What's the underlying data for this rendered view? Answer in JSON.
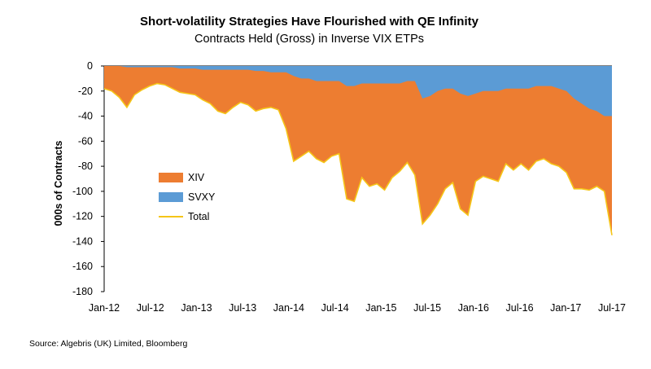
{
  "chart_data": {
    "type": "area",
    "title": "Short-volatility Strategies Have Flourished with QE Infinity",
    "subtitle": "Contracts Held (Gross) in Inverse VIX ETPs",
    "xlabel": "",
    "ylabel": "000s of Contracts",
    "ylim": [
      -180,
      0
    ],
    "yticks": [
      0,
      -20,
      -40,
      -60,
      -80,
      -100,
      -120,
      -140,
      -160,
      -180
    ],
    "x_tick_labels": [
      "Jan-12",
      "Jul-12",
      "Jan-13",
      "Jul-13",
      "Jan-14",
      "Jul-14",
      "Jan-15",
      "Jul-15",
      "Jan-16",
      "Jul-16",
      "Jan-17",
      "Jul-17"
    ],
    "grid": false,
    "legend_position": "left-middle",
    "x": [
      "2012-01",
      "2012-02",
      "2012-03",
      "2012-04",
      "2012-05",
      "2012-06",
      "2012-07",
      "2012-08",
      "2012-09",
      "2012-10",
      "2012-11",
      "2012-12",
      "2013-01",
      "2013-02",
      "2013-03",
      "2013-04",
      "2013-05",
      "2013-06",
      "2013-07",
      "2013-08",
      "2013-09",
      "2013-10",
      "2013-11",
      "2013-12",
      "2014-01",
      "2014-02",
      "2014-03",
      "2014-04",
      "2014-05",
      "2014-06",
      "2014-07",
      "2014-08",
      "2014-09",
      "2014-10",
      "2014-11",
      "2014-12",
      "2015-01",
      "2015-02",
      "2015-03",
      "2015-04",
      "2015-05",
      "2015-06",
      "2015-07",
      "2015-08",
      "2015-09",
      "2015-10",
      "2015-11",
      "2015-12",
      "2016-01",
      "2016-02",
      "2016-03",
      "2016-04",
      "2016-05",
      "2016-06",
      "2016-07",
      "2016-08",
      "2016-09",
      "2016-10",
      "2016-11",
      "2016-12",
      "2017-01",
      "2017-02",
      "2017-03",
      "2017-04",
      "2017-05",
      "2017-06",
      "2017-07",
      "2017-08"
    ],
    "series": [
      {
        "name": "XIV",
        "color": "#ED7D31",
        "values": [
          -18,
          -20,
          -25,
          -32,
          -22,
          -18,
          -15,
          -13,
          -14,
          -17,
          -19,
          -20,
          -21,
          -24,
          -27,
          -33,
          -35,
          -30,
          -26,
          -28,
          -32,
          -30,
          -28,
          -30,
          -45,
          -68,
          -62,
          -58,
          -62,
          -65,
          -60,
          -58,
          -90,
          -92,
          -75,
          -82,
          -80,
          -85,
          -75,
          -70,
          -65,
          -75,
          -100,
          -95,
          -90,
          -80,
          -75,
          -92,
          -95,
          -70,
          -68,
          -70,
          -72,
          -60,
          -65,
          -60,
          -65,
          -60,
          -58,
          -62,
          -62,
          -65,
          -72,
          -68,
          -65,
          -60,
          -60,
          -95
        ]
      },
      {
        "name": "SVXY",
        "color": "#5B9BD5",
        "values": [
          0,
          0,
          0,
          -1,
          -1,
          -1,
          -1,
          -1,
          -1,
          -1,
          -2,
          -2,
          -2,
          -3,
          -3,
          -3,
          -3,
          -3,
          -3,
          -3,
          -4,
          -4,
          -5,
          -5,
          -5,
          -8,
          -10,
          -10,
          -12,
          -12,
          -12,
          -12,
          -16,
          -16,
          -14,
          -14,
          -14,
          -14,
          -14,
          -14,
          -12,
          -12,
          -26,
          -24,
          -20,
          -18,
          -18,
          -22,
          -24,
          -22,
          -20,
          -20,
          -20,
          -18,
          -18,
          -18,
          -18,
          -16,
          -16,
          -16,
          -18,
          -20,
          -26,
          -30,
          -34,
          -36,
          -40,
          -40
        ]
      },
      {
        "name": "Total",
        "color": "#F5C518",
        "values": [
          -18,
          -20,
          -25,
          -33,
          -23,
          -19,
          -16,
          -14,
          -15,
          -18,
          -21,
          -22,
          -23,
          -27,
          -30,
          -36,
          -38,
          -33,
          -29,
          -31,
          -36,
          -34,
          -33,
          -35,
          -50,
          -76,
          -72,
          -68,
          -74,
          -77,
          -72,
          -70,
          -106,
          -108,
          -89,
          -96,
          -94,
          -99,
          -89,
          -84,
          -77,
          -87,
          -126,
          -119,
          -110,
          -98,
          -93,
          -114,
          -119,
          -92,
          -88,
          -90,
          -92,
          -78,
          -83,
          -78,
          -83,
          -76,
          -74,
          -78,
          -80,
          -85,
          -98,
          -98,
          -99,
          -96,
          -100,
          -135
        ]
      }
    ],
    "annotations": []
  },
  "source": "Source: Algebris (UK) Limited, Bloomberg"
}
